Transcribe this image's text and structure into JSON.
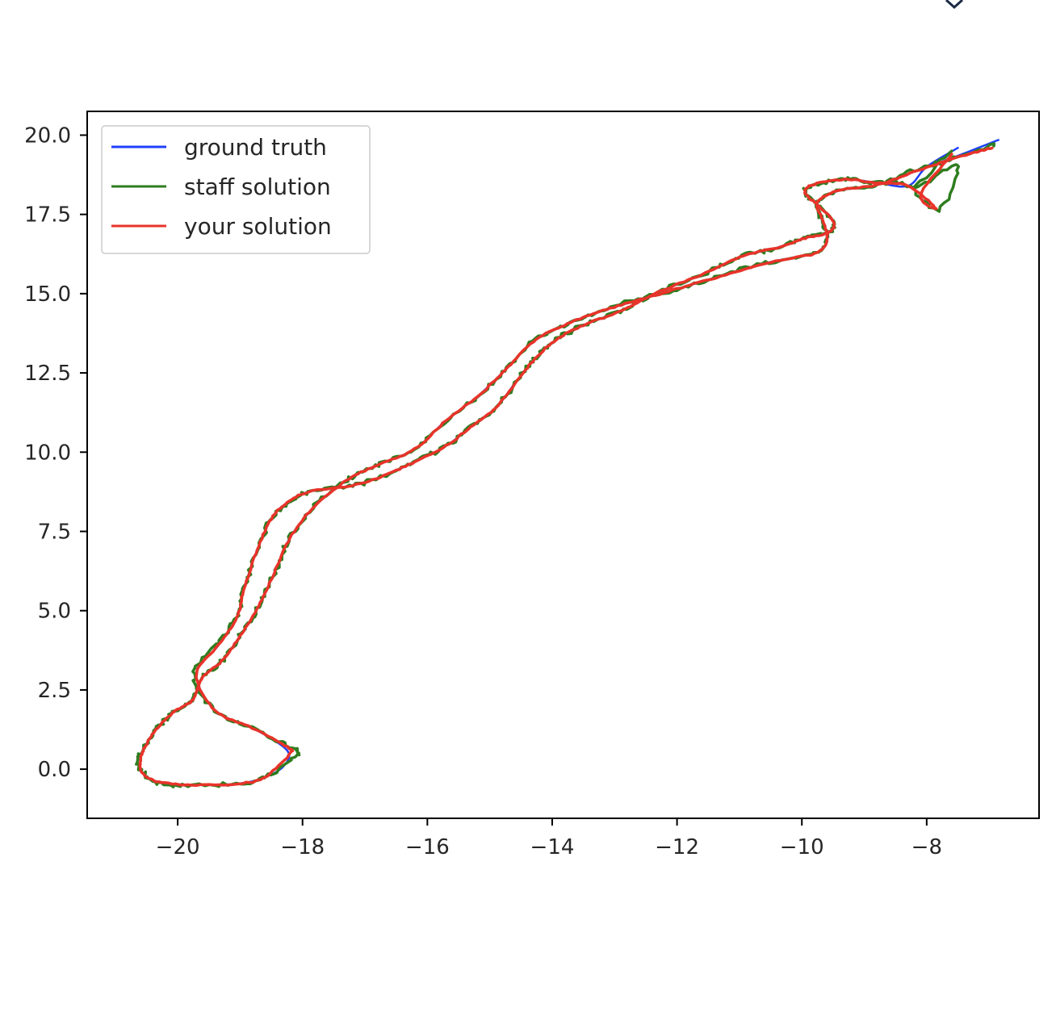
{
  "chart_data": {
    "type": "line",
    "title": "",
    "xlabel": "",
    "ylabel": "",
    "xlim": [
      -21.45,
      -6.2
    ],
    "ylim": [
      -1.55,
      20.75
    ],
    "xticks": [
      -20,
      -18,
      -16,
      -14,
      -12,
      -10,
      -8
    ],
    "xtick_labels": [
      "−20",
      "−18",
      "−16",
      "−14",
      "−12",
      "−10",
      "−8"
    ],
    "yticks": [
      0.0,
      2.5,
      5.0,
      7.5,
      10.0,
      12.5,
      15.0,
      17.5,
      20.0
    ],
    "ytick_labels": [
      "0.0",
      "2.5",
      "5.0",
      "7.5",
      "10.0",
      "12.5",
      "15.0",
      "17.5",
      "20.0"
    ],
    "grid": false,
    "legend_position": "top-left",
    "series": [
      {
        "name": "ground truth",
        "color": "#1f3fff",
        "jitter": 0,
        "x": [
          -6.85,
          -7.5,
          -8.2,
          -8.75,
          -9.4,
          -9.75,
          -9.7,
          -9.6,
          -9.75,
          -10.5,
          -11.3,
          -12.0,
          -12.7,
          -13.3,
          -13.8,
          -14.3,
          -14.75,
          -15.2,
          -15.7,
          -16.2,
          -16.8,
          -17.3,
          -17.8,
          -18.2,
          -18.45,
          -18.7,
          -19.0,
          -19.3,
          -19.6,
          -19.75,
          -19.9,
          -20.1,
          -20.3,
          -20.5,
          -20.6,
          -20.55,
          -20.3,
          -19.7,
          -19.0,
          -18.6,
          -18.3,
          -18.25,
          -18.8,
          -19.4,
          -19.7,
          -19.35,
          -19.05,
          -18.95,
          -18.75,
          -18.5,
          -18.25,
          -17.9,
          -17.2,
          -16.7,
          -16.2,
          -15.7,
          -15.3,
          -14.9,
          -14.55,
          -14.25,
          -13.9,
          -13.5,
          -12.85,
          -12.3,
          -11.6,
          -11.0,
          -10.4,
          -9.95,
          -9.55,
          -9.5,
          -9.75,
          -9.95,
          -9.8,
          -9.3,
          -8.8,
          -8.3,
          -8.0,
          -7.5
        ],
        "y": [
          19.85,
          19.35,
          18.85,
          18.45,
          18.25,
          17.9,
          17.45,
          16.8,
          16.3,
          16.0,
          15.55,
          15.15,
          14.75,
          14.4,
          14.0,
          13.5,
          12.6,
          11.75,
          11.0,
          10.1,
          9.6,
          9.1,
          8.3,
          7.3,
          6.2,
          5.15,
          4.2,
          3.4,
          2.9,
          2.2,
          2.0,
          1.75,
          1.35,
          0.8,
          0.25,
          -0.15,
          -0.4,
          -0.5,
          -0.45,
          -0.25,
          0.1,
          0.6,
          1.3,
          1.85,
          3.0,
          3.9,
          4.8,
          5.6,
          6.8,
          7.9,
          8.4,
          8.75,
          8.95,
          9.25,
          9.7,
          10.2,
          10.8,
          11.4,
          12.3,
          13.0,
          13.6,
          14.0,
          14.5,
          15.05,
          15.6,
          16.15,
          16.45,
          16.75,
          16.95,
          17.3,
          17.8,
          18.2,
          18.45,
          18.6,
          18.5,
          18.4,
          19.0,
          19.6
        ]
      },
      {
        "name": "staff solution",
        "color": "#2e7d1f",
        "jitter": 5,
        "x": [
          -6.9,
          -7.5,
          -8.2,
          -8.75,
          -9.4,
          -9.75,
          -9.7,
          -9.6,
          -9.75,
          -10.5,
          -11.3,
          -12.0,
          -12.7,
          -13.3,
          -13.8,
          -14.3,
          -14.75,
          -15.2,
          -15.7,
          -16.2,
          -16.8,
          -17.3,
          -17.8,
          -18.2,
          -18.45,
          -18.7,
          -19.0,
          -19.3,
          -19.6,
          -19.75,
          -19.9,
          -20.1,
          -20.3,
          -20.5,
          -20.65,
          -20.55,
          -20.3,
          -19.7,
          -19.0,
          -18.6,
          -18.1,
          -18.2,
          -18.8,
          -19.4,
          -19.75,
          -19.4,
          -19.05,
          -18.95,
          -18.75,
          -18.5,
          -18.25,
          -17.9,
          -17.2,
          -16.7,
          -16.2,
          -15.7,
          -15.3,
          -14.9,
          -14.55,
          -14.25,
          -13.9,
          -13.5,
          -12.85,
          -12.3,
          -11.6,
          -11.0,
          -10.4,
          -9.95,
          -9.55,
          -9.5,
          -9.75,
          -9.95,
          -9.8,
          -9.3,
          -8.8,
          -8.3,
          -7.8,
          -7.5,
          -8.2,
          -7.6
        ],
        "y": [
          19.7,
          19.3,
          18.9,
          18.45,
          18.25,
          17.9,
          17.45,
          16.8,
          16.3,
          16.0,
          15.6,
          15.1,
          14.8,
          14.35,
          14.0,
          13.5,
          12.6,
          11.75,
          11.0,
          10.1,
          9.6,
          9.1,
          8.35,
          7.3,
          6.2,
          5.15,
          4.2,
          3.4,
          2.9,
          2.2,
          2.0,
          1.75,
          1.35,
          0.8,
          0.3,
          -0.1,
          -0.45,
          -0.5,
          -0.45,
          -0.25,
          0.45,
          0.7,
          1.3,
          1.85,
          3.0,
          3.9,
          4.8,
          5.6,
          6.8,
          7.9,
          8.4,
          8.75,
          8.95,
          9.25,
          9.7,
          10.2,
          10.8,
          11.4,
          12.3,
          13.0,
          13.6,
          14.0,
          14.5,
          15.05,
          15.6,
          16.15,
          16.45,
          16.75,
          16.95,
          17.3,
          17.8,
          18.2,
          18.45,
          18.6,
          18.5,
          18.4,
          17.65,
          19.1,
          18.3,
          19.5
        ]
      },
      {
        "name": "your solution",
        "color": "#e8332a",
        "jitter": 1.5,
        "x": [
          -6.95,
          -7.5,
          -8.2,
          -8.75,
          -9.4,
          -9.75,
          -9.7,
          -9.6,
          -9.75,
          -10.5,
          -11.3,
          -12.0,
          -12.7,
          -13.3,
          -13.8,
          -14.3,
          -14.75,
          -15.2,
          -15.7,
          -16.2,
          -16.8,
          -17.3,
          -17.8,
          -18.2,
          -18.45,
          -18.7,
          -19.0,
          -19.3,
          -19.6,
          -19.75,
          -19.9,
          -20.1,
          -20.3,
          -20.5,
          -20.6,
          -20.55,
          -20.3,
          -19.7,
          -19.0,
          -18.6,
          -18.2,
          -18.25,
          -18.8,
          -19.4,
          -19.7,
          -19.35,
          -19.05,
          -18.95,
          -18.75,
          -18.5,
          -18.25,
          -17.9,
          -17.2,
          -16.7,
          -16.2,
          -15.7,
          -15.3,
          -14.9,
          -14.55,
          -14.25,
          -13.9,
          -13.5,
          -12.85,
          -12.3,
          -11.6,
          -11.0,
          -10.4,
          -9.95,
          -9.55,
          -9.5,
          -9.75,
          -9.95,
          -9.8,
          -9.3,
          -8.8,
          -8.3,
          -7.85,
          -8.1,
          -7.6
        ],
        "y": [
          19.6,
          19.3,
          18.85,
          18.45,
          18.25,
          17.9,
          17.45,
          16.8,
          16.3,
          16.0,
          15.55,
          15.15,
          14.75,
          14.4,
          14.0,
          13.5,
          12.6,
          11.75,
          11.0,
          10.1,
          9.6,
          9.1,
          8.3,
          7.3,
          6.2,
          5.15,
          4.2,
          3.4,
          2.9,
          2.2,
          2.0,
          1.75,
          1.35,
          0.8,
          0.25,
          -0.15,
          -0.4,
          -0.5,
          -0.45,
          -0.25,
          0.5,
          0.7,
          1.3,
          1.85,
          3.0,
          3.9,
          4.8,
          5.6,
          6.8,
          7.9,
          8.4,
          8.75,
          8.95,
          9.25,
          9.7,
          10.2,
          10.8,
          11.4,
          12.3,
          13.0,
          13.6,
          14.0,
          14.5,
          15.05,
          15.6,
          16.15,
          16.45,
          16.75,
          16.95,
          17.3,
          17.8,
          18.2,
          18.45,
          18.6,
          18.5,
          18.4,
          17.7,
          18.1,
          19.4
        ]
      }
    ]
  },
  "colors": {
    "axis": "#000000",
    "text": "#262626",
    "corner_mark": "#1c2a44"
  }
}
